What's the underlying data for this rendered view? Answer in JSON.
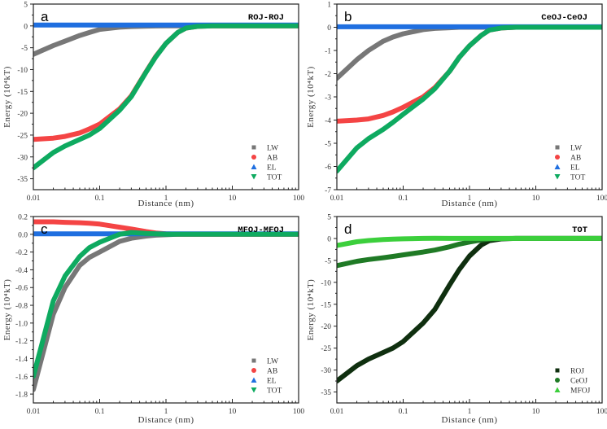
{
  "chart_data": [
    {
      "type": "line",
      "panel_letter": "a",
      "title": "ROJ-ROJ",
      "xlabel": "Distance (nm)",
      "ylabel": "Energy (10⁴kT)",
      "xscale": "log",
      "xlim": [
        0.01,
        100
      ],
      "ylim": [
        -37.5,
        5
      ],
      "yticks": [
        5,
        0,
        -5,
        -10,
        -15,
        -20,
        -25,
        -30,
        -35
      ],
      "ytick_labels": [
        "5",
        "0",
        "-5",
        "-10",
        "-15",
        "-20",
        "-25",
        "-30",
        "-35"
      ],
      "xticks": [
        0.01,
        0.1,
        1,
        10,
        100
      ],
      "xtick_labels": [
        "0.01",
        "0.1",
        "1",
        "10",
        "100"
      ],
      "legend_position": "bottom-right",
      "x": [
        0.01,
        0.02,
        0.03,
        0.05,
        0.07,
        0.1,
        0.2,
        0.3,
        0.5,
        0.7,
        1,
        1.5,
        2,
        3,
        5,
        10,
        100
      ],
      "series": [
        {
          "name": "LW",
          "marker": "square",
          "color": "#777777",
          "values": [
            -6.5,
            -4.5,
            -3.5,
            -2.2,
            -1.5,
            -0.8,
            -0.3,
            -0.15,
            -0.05,
            -0.02,
            0,
            0,
            0,
            0,
            0,
            0,
            0
          ]
        },
        {
          "name": "AB",
          "marker": "circle",
          "color": "#f44444",
          "values": [
            -26,
            -25.7,
            -25.3,
            -24.5,
            -23.6,
            -22.5,
            -19,
            -16,
            -10.5,
            -7,
            -4,
            -1.5,
            -0.5,
            -0.1,
            0,
            0,
            0
          ]
        },
        {
          "name": "EL",
          "marker": "triangle-up",
          "color": "#1f6fe0",
          "values": [
            0.2,
            0.2,
            0.2,
            0.2,
            0.2,
            0.2,
            0.2,
            0.2,
            0.2,
            0.2,
            0.2,
            0.2,
            0.2,
            0.2,
            0.2,
            0.2,
            0.2
          ]
        },
        {
          "name": "TOT",
          "marker": "triangle-down",
          "color": "#0eaa60",
          "values": [
            -32.5,
            -29,
            -27.5,
            -26,
            -25,
            -23.5,
            -19.3,
            -16.2,
            -10.6,
            -7.1,
            -4,
            -1.5,
            -0.5,
            -0.1,
            0,
            0,
            0
          ]
        }
      ]
    },
    {
      "type": "line",
      "panel_letter": "b",
      "title": "CeOJ-CeOJ",
      "xlabel": "Distance (nm)",
      "ylabel": "Energy (10⁴kT)",
      "xscale": "log",
      "xlim": [
        0.01,
        100
      ],
      "ylim": [
        -7,
        1
      ],
      "yticks": [
        1,
        0,
        -1,
        -2,
        -3,
        -4,
        -5,
        -6,
        -7
      ],
      "ytick_labels": [
        "1",
        "0",
        "-1",
        "-2",
        "-3",
        "-4",
        "-5",
        "-6",
        "-7"
      ],
      "xticks": [
        0.01,
        0.1,
        1,
        10,
        100
      ],
      "xtick_labels": [
        "0.01",
        "0.1",
        "1",
        "10",
        "100"
      ],
      "legend_position": "bottom-right",
      "x": [
        0.01,
        0.02,
        0.03,
        0.05,
        0.07,
        0.1,
        0.2,
        0.3,
        0.5,
        0.7,
        1,
        1.5,
        2,
        3,
        5,
        10,
        100
      ],
      "series": [
        {
          "name": "LW",
          "marker": "square",
          "color": "#777777",
          "values": [
            -2.2,
            -1.4,
            -1.0,
            -0.6,
            -0.42,
            -0.28,
            -0.1,
            -0.05,
            -0.02,
            0,
            0,
            0,
            0,
            0,
            0,
            0,
            0
          ]
        },
        {
          "name": "AB",
          "marker": "circle",
          "color": "#f44444",
          "values": [
            -4.05,
            -4.0,
            -3.95,
            -3.8,
            -3.65,
            -3.45,
            -3.0,
            -2.6,
            -1.9,
            -1.3,
            -0.8,
            -0.35,
            -0.12,
            -0.03,
            0,
            0,
            0
          ]
        },
        {
          "name": "EL",
          "marker": "triangle-up",
          "color": "#1f6fe0",
          "values": [
            0.02,
            0.02,
            0.02,
            0.02,
            0.02,
            0.02,
            0.02,
            0.02,
            0.02,
            0.02,
            0.02,
            0.02,
            0.02,
            0.02,
            0.02,
            0.02,
            0.02
          ]
        },
        {
          "name": "TOT",
          "marker": "triangle-down",
          "color": "#0eaa60",
          "values": [
            -6.2,
            -5.2,
            -4.8,
            -4.4,
            -4.1,
            -3.75,
            -3.1,
            -2.65,
            -1.9,
            -1.3,
            -0.8,
            -0.35,
            -0.12,
            -0.03,
            0,
            0,
            0
          ]
        }
      ]
    },
    {
      "type": "line",
      "panel_letter": "c",
      "title": "MFOJ-MFOJ",
      "xlabel": "Distance (nm)",
      "ylabel": "Energy (10⁴kT)",
      "xscale": "log",
      "xlim": [
        0.01,
        100
      ],
      "ylim": [
        -1.9,
        0.2
      ],
      "yticks": [
        0.2,
        0.0,
        -0.2,
        -0.4,
        -0.6,
        -0.8,
        -1.0,
        -1.2,
        -1.4,
        -1.6,
        -1.8
      ],
      "ytick_labels": [
        "0.2",
        "0.0",
        "-0.2",
        "-0.4",
        "-0.6",
        "-0.8",
        "-1.0",
        "-1.2",
        "-1.4",
        "-1.6",
        "-1.8"
      ],
      "xticks": [
        0.01,
        0.1,
        1,
        10,
        100
      ],
      "xtick_labels": [
        "0.01",
        "0.1",
        "1",
        "10",
        "100"
      ],
      "legend_position": "bottom-right",
      "x": [
        0.01,
        0.02,
        0.03,
        0.05,
        0.07,
        0.1,
        0.2,
        0.3,
        0.5,
        0.7,
        1,
        1.5,
        2,
        3,
        5,
        10,
        100
      ],
      "series": [
        {
          "name": "LW",
          "marker": "square",
          "color": "#777777",
          "values": [
            -1.75,
            -0.9,
            -0.6,
            -0.35,
            -0.26,
            -0.2,
            -0.08,
            -0.045,
            -0.02,
            -0.01,
            -0.005,
            0,
            0,
            0,
            0,
            0,
            0
          ]
        },
        {
          "name": "AB",
          "marker": "circle",
          "color": "#f44444",
          "values": [
            0.14,
            0.14,
            0.135,
            0.13,
            0.125,
            0.115,
            0.08,
            0.06,
            0.03,
            0.015,
            0.005,
            0,
            0,
            0,
            0,
            0,
            0
          ]
        },
        {
          "name": "EL",
          "marker": "triangle-up",
          "color": "#1f6fe0",
          "values": [
            0.005,
            0.005,
            0.005,
            0.005,
            0.005,
            0.005,
            0.005,
            0.005,
            0.005,
            0.005,
            0.005,
            0.005,
            0.005,
            0.005,
            0.005,
            0.005,
            0.005
          ]
        },
        {
          "name": "TOT",
          "marker": "triangle-down",
          "color": "#0eaa60",
          "values": [
            -1.6,
            -0.75,
            -0.47,
            -0.25,
            -0.15,
            -0.09,
            0.0,
            0.02,
            0.01,
            0.005,
            0,
            0,
            0,
            0,
            0,
            0,
            0
          ]
        }
      ]
    },
    {
      "type": "line",
      "panel_letter": "d",
      "title": "TOT",
      "xlabel": "Distance (nm)",
      "ylabel": "Energy (10⁴kT)",
      "xscale": "log",
      "xlim": [
        0.01,
        100
      ],
      "ylim": [
        -37.5,
        5
      ],
      "yticks": [
        5,
        0,
        -5,
        -10,
        -15,
        -20,
        -25,
        -30,
        -35
      ],
      "ytick_labels": [
        "5",
        "0",
        "-5",
        "-10",
        "-15",
        "-20",
        "-25",
        "-30",
        "-35"
      ],
      "xticks": [
        0.01,
        0.1,
        1,
        10,
        100
      ],
      "xtick_labels": [
        "0.01",
        "0.1",
        "1",
        "10",
        "100"
      ],
      "legend_position": "bottom-right",
      "x": [
        0.01,
        0.02,
        0.03,
        0.05,
        0.07,
        0.1,
        0.2,
        0.3,
        0.5,
        0.7,
        1,
        1.5,
        2,
        3,
        5,
        10,
        100
      ],
      "series": [
        {
          "name": "ROJ",
          "marker": "square",
          "color": "#0f2f0f",
          "values": [
            -32.5,
            -29,
            -27.5,
            -26,
            -25,
            -23.5,
            -19.3,
            -16.2,
            -10.6,
            -7.1,
            -4,
            -1.5,
            -0.5,
            -0.1,
            0,
            0,
            0
          ]
        },
        {
          "name": "CeOJ",
          "marker": "circle",
          "color": "#1f7a25",
          "values": [
            -6.2,
            -5.2,
            -4.8,
            -4.4,
            -4.1,
            -3.75,
            -3.1,
            -2.65,
            -1.9,
            -1.3,
            -0.8,
            -0.35,
            -0.12,
            -0.03,
            0,
            0,
            0
          ]
        },
        {
          "name": "MFOJ",
          "marker": "triangle-up",
          "color": "#3ccf3c",
          "values": [
            -1.6,
            -0.75,
            -0.47,
            -0.25,
            -0.15,
            -0.09,
            0.0,
            0.02,
            0.01,
            0.005,
            0,
            0,
            0,
            0,
            0,
            0,
            0
          ]
        }
      ]
    }
  ]
}
